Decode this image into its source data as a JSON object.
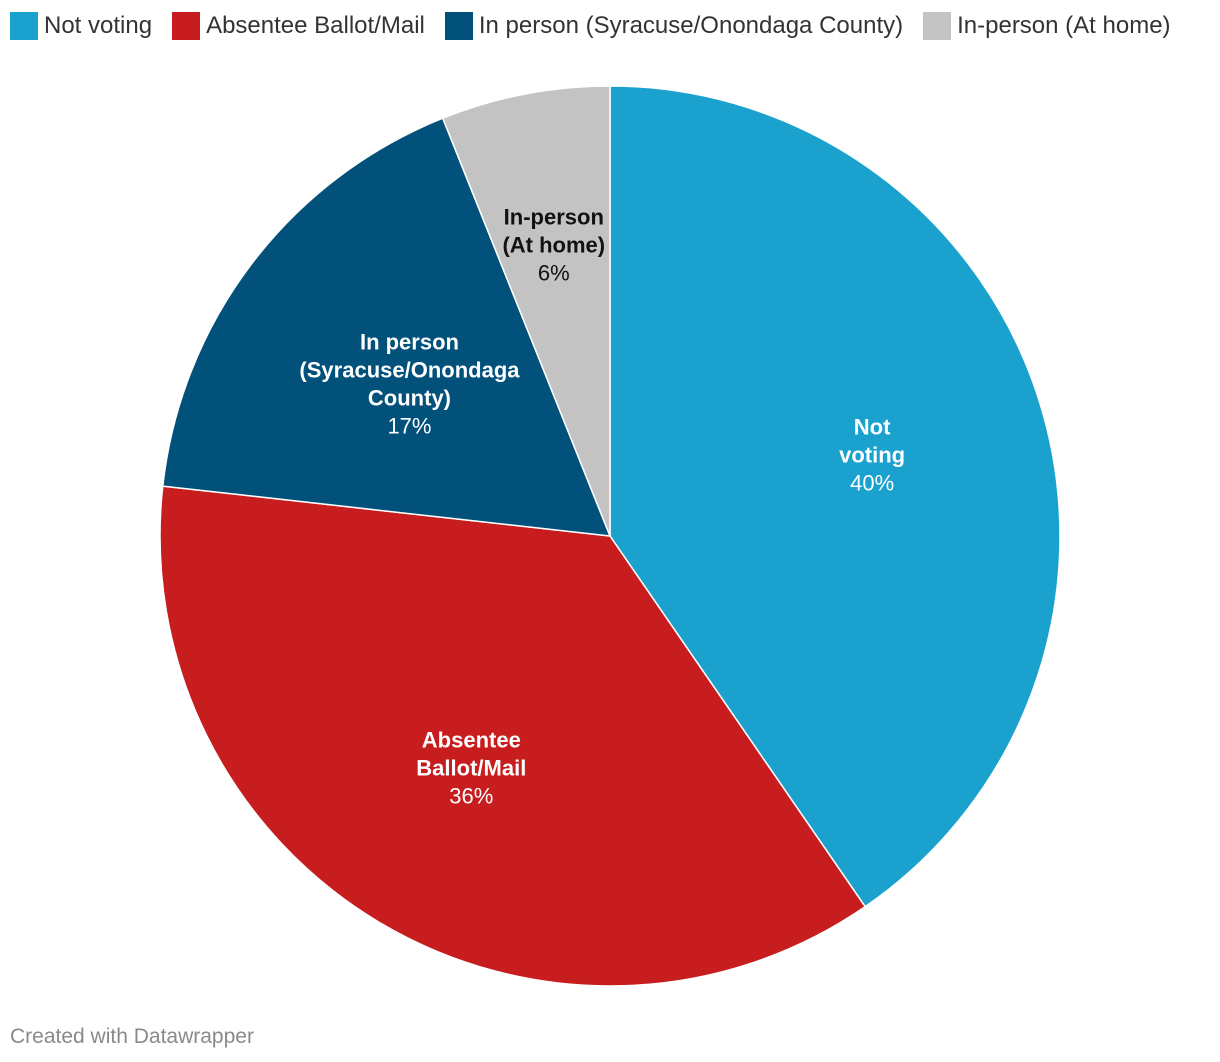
{
  "chart_data": {
    "type": "pie",
    "title": "",
    "legend_position": "top",
    "slices": [
      {
        "key": "not-voting",
        "legend": "Not voting",
        "label_lines": [
          "Not",
          "voting"
        ],
        "value": 40,
        "display": "40%",
        "color": "#1aa1cd",
        "text_color": "#ffffff"
      },
      {
        "key": "absentee",
        "legend": "Absentee Ballot/Mail",
        "label_lines": [
          "Absentee",
          "Ballot/Mail"
        ],
        "value": 36,
        "display": "36%",
        "color": "#c81d1e",
        "text_color": "#ffffff"
      },
      {
        "key": "in-person-syracuse",
        "legend": "In person (Syracuse/Onondaga County)",
        "label_lines": [
          "In person",
          "(Syracuse/Onondaga",
          "County)"
        ],
        "value": 17,
        "display": "17%",
        "color": "#02517a",
        "text_color": "#ffffff"
      },
      {
        "key": "in-person-home",
        "legend": "In-person (At home)",
        "label_lines": [
          "In-person",
          "(At home)"
        ],
        "value": 6,
        "display": "6%",
        "color": "#c3c3c3",
        "text_color": "#111111"
      }
    ]
  },
  "footer": {
    "credit": "Created with Datawrapper"
  }
}
